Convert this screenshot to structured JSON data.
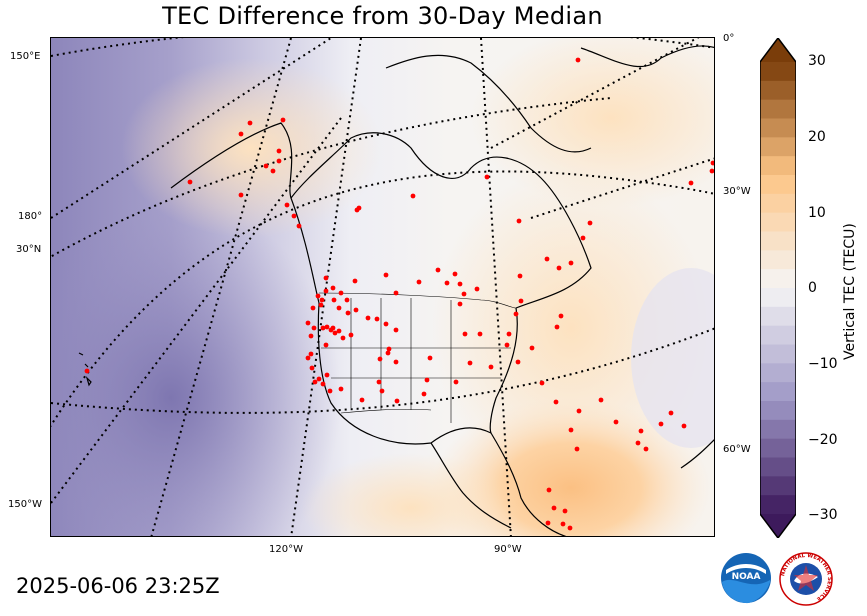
{
  "title": "TEC Difference from 30-Day Median",
  "timestamp": "2025-06-06 23:25Z",
  "colorbar": {
    "label": "Vertical TEC (TECU)",
    "min": -30,
    "max": 30,
    "ticks": [
      "30",
      "20",
      "10",
      "0",
      "−10",
      "−20",
      "−30"
    ],
    "colors": {
      "neg_dark": "#3d1a5c",
      "neg_mid": "#9d96c5",
      "neutral": "#f5f5f5",
      "pos_mid": "#fdc586",
      "pos_dark": "#7a3d0a"
    }
  },
  "edge_labels": {
    "left": [
      "150°E",
      "180°",
      "30°N",
      "150°W"
    ],
    "right": [
      "0°",
      "30°W",
      "60°W"
    ],
    "bottom": [
      "120°W",
      "90°W"
    ]
  },
  "logos": {
    "noaa": "NOAA",
    "nws_ring": "NATIONAL WEATHER SERVICE"
  },
  "station_color": "#ff0000",
  "station_count": 120
}
